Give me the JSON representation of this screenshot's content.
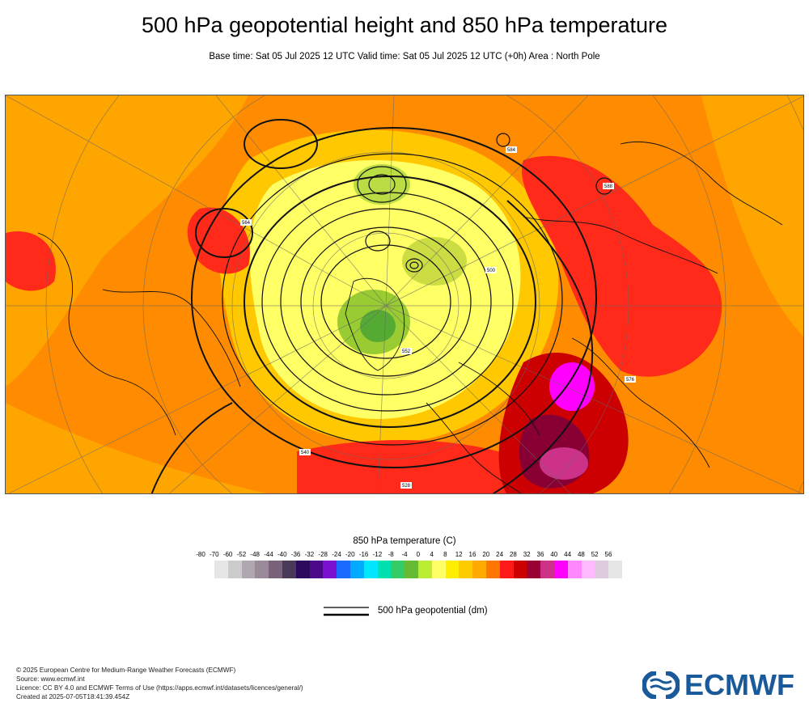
{
  "header": {
    "title": "500 hPa geopotential height and 850 hPa temperature",
    "subtitle": "Base time: Sat 05 Jul 2025 12 UTC Valid time: Sat 05 Jul 2025 12 UTC (+0h) Area : North Pole"
  },
  "map": {
    "area": "North Pole",
    "contour_labels": [
      "500",
      "540",
      "552",
      "576",
      "584",
      "588",
      "564",
      "528"
    ]
  },
  "legend": {
    "temperature_title": "850 hPa temperature (C)",
    "ticks": [
      "-80",
      "-70",
      "-60",
      "-52",
      "-48",
      "-44",
      "-40",
      "-36",
      "-32",
      "-28",
      "-24",
      "-20",
      "-16",
      "-12",
      "-8",
      "-4",
      "0",
      "4",
      "8",
      "12",
      "16",
      "20",
      "24",
      "28",
      "32",
      "36",
      "40",
      "44",
      "48",
      "52",
      "56"
    ],
    "colors": [
      "#e6e6e6",
      "#cccccc",
      "#b0a8b0",
      "#9a8a9a",
      "#7a627a",
      "#4a3a5a",
      "#2c0a5e",
      "#4a0a8a",
      "#7a10d0",
      "#1a6aff",
      "#00aaff",
      "#00e6ff",
      "#00e0b0",
      "#33cc66",
      "#66bb33",
      "#bbee33",
      "#ffff66",
      "#ffee00",
      "#ffcc00",
      "#ffaa00",
      "#ff7700",
      "#ff1a1a",
      "#cc0000",
      "#990033",
      "#cc3388",
      "#ff00ff",
      "#ff88ff",
      "#ffbbff",
      "#ddccdd",
      "#e6e6e6"
    ],
    "geopotential_label": "500 hPa geopotential (dm)"
  },
  "footer": {
    "copyright": "© 2025 European Centre for Medium-Range Weather Forecasts (ECMWF)",
    "source": "Source: www.ecmwf.int",
    "licence": "Licence: CC BY 4.0 and ECMWF Terms of Use (https://apps.ecmwf.int/datasets/licences/general/)",
    "created": "Created at 2025-07-05T18:41:39.454Z"
  },
  "logo": {
    "text": "ECMWF",
    "brand_color": "#1a5a9a"
  }
}
